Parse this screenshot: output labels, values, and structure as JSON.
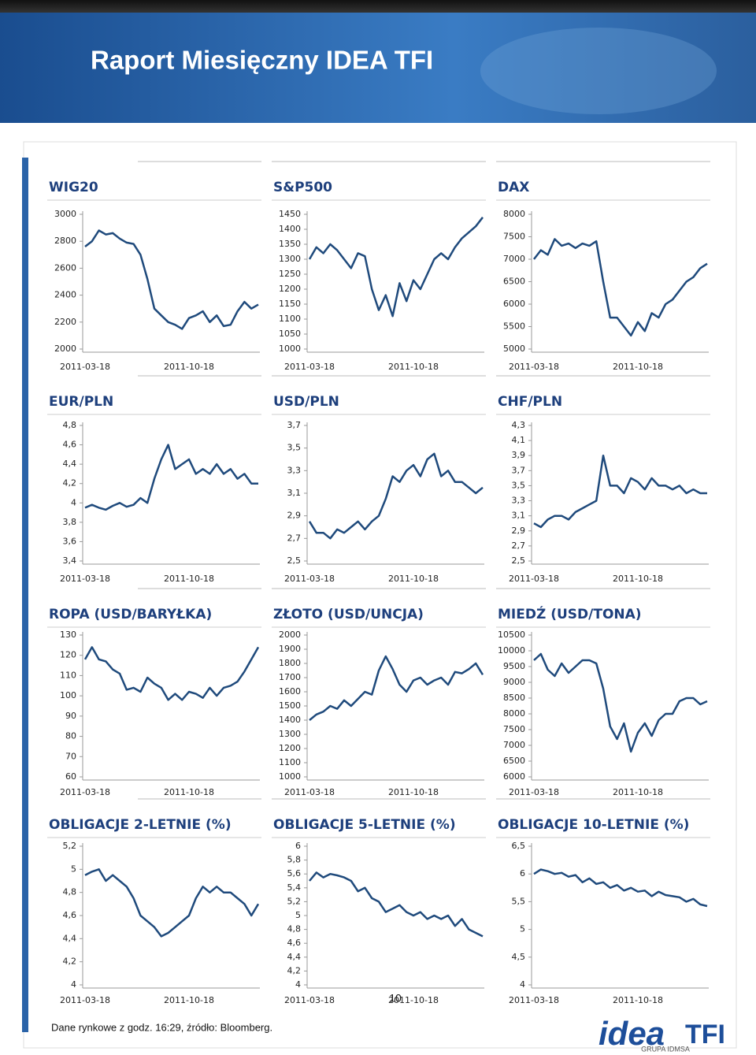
{
  "header": {
    "title": "Raport Miesięczny IDEA TFI"
  },
  "footer": {
    "note": "Dane rynkowe z godz. 16:29, źródło: Bloomberg.",
    "page": "10"
  },
  "logo": {
    "name": "idea",
    "suffix": "TFI",
    "group": "GRUPA IDMSA"
  },
  "chart_data": [
    {
      "type": "line",
      "title": "WIG20",
      "color": "#1f4a7c",
      "categories": [
        "2011-03-18",
        null,
        null,
        null,
        null,
        null,
        null,
        null,
        null,
        null,
        null,
        null,
        null,
        null,
        null,
        "2011-10-18",
        null,
        null,
        null,
        null,
        null,
        null,
        null,
        null,
        null,
        null
      ],
      "values": [
        2760,
        2800,
        2880,
        2850,
        2860,
        2820,
        2790,
        2780,
        2700,
        2520,
        2300,
        2250,
        2200,
        2180,
        2150,
        2230,
        2250,
        2280,
        2200,
        2250,
        2170,
        2180,
        2280,
        2350,
        2300,
        2330
      ],
      "ylim": [
        2000,
        3000
      ],
      "yticks": [
        2000,
        2200,
        2400,
        2600,
        2800,
        3000
      ]
    },
    {
      "type": "line",
      "title": "S&P500",
      "color": "#1f4a7c",
      "categories": [
        "2011-03-18",
        null,
        null,
        null,
        null,
        null,
        null,
        null,
        null,
        null,
        null,
        null,
        null,
        null,
        null,
        "2011-10-18",
        null,
        null,
        null,
        null,
        null,
        null,
        null,
        null,
        null,
        null
      ],
      "values": [
        1300,
        1340,
        1320,
        1350,
        1330,
        1300,
        1270,
        1320,
        1310,
        1200,
        1130,
        1180,
        1110,
        1220,
        1160,
        1230,
        1200,
        1250,
        1300,
        1320,
        1300,
        1340,
        1370,
        1390,
        1410,
        1440
      ],
      "ylim": [
        1000,
        1450
      ],
      "yticks": [
        1000,
        1050,
        1100,
        1150,
        1200,
        1250,
        1300,
        1350,
        1400,
        1450
      ]
    },
    {
      "type": "line",
      "title": "DAX",
      "color": "#1f4a7c",
      "categories": [
        "2011-03-18",
        null,
        null,
        null,
        null,
        null,
        null,
        null,
        null,
        null,
        null,
        null,
        null,
        null,
        null,
        "2011-10-18",
        null,
        null,
        null,
        null,
        null,
        null,
        null,
        null,
        null,
        null
      ],
      "values": [
        7000,
        7200,
        7100,
        7450,
        7300,
        7350,
        7250,
        7350,
        7300,
        7400,
        6500,
        5700,
        5700,
        5500,
        5300,
        5600,
        5400,
        5800,
        5700,
        6000,
        6100,
        6300,
        6500,
        6600,
        6800,
        6900
      ],
      "ylim": [
        5000,
        8000
      ],
      "yticks": [
        5000,
        5500,
        6000,
        6500,
        7000,
        7500,
        8000
      ]
    },
    {
      "type": "line",
      "title": "EUR/PLN",
      "color": "#1f4a7c",
      "categories": [
        "2011-03-18",
        null,
        null,
        null,
        null,
        null,
        null,
        null,
        null,
        null,
        null,
        null,
        null,
        null,
        null,
        "2011-10-18",
        null,
        null,
        null,
        null,
        null,
        null,
        null,
        null,
        null,
        null
      ],
      "values": [
        3.95,
        3.98,
        3.95,
        3.93,
        3.97,
        4.0,
        3.96,
        3.98,
        4.05,
        4.0,
        4.25,
        4.45,
        4.6,
        4.35,
        4.4,
        4.45,
        4.3,
        4.35,
        4.3,
        4.4,
        4.3,
        4.35,
        4.25,
        4.3,
        4.2,
        4.2
      ],
      "ylim": [
        3.4,
        4.8
      ],
      "yticks": [
        {
          "value": 3.4,
          "label": "3,4"
        },
        {
          "value": 3.6,
          "label": "3,6"
        },
        {
          "value": 3.8,
          "label": "3,8"
        },
        4,
        {
          "value": 4.2,
          "label": "4,2"
        },
        {
          "value": 4.4,
          "label": "4,4"
        },
        {
          "value": 4.6,
          "label": "4,6"
        },
        {
          "value": 4.8,
          "label": "4,8"
        }
      ]
    },
    {
      "type": "line",
      "title": "USD/PLN",
      "color": "#1f4a7c",
      "categories": [
        "2011-03-18",
        null,
        null,
        null,
        null,
        null,
        null,
        null,
        null,
        null,
        null,
        null,
        null,
        null,
        null,
        "2011-10-18",
        null,
        null,
        null,
        null,
        null,
        null,
        null,
        null,
        null,
        null
      ],
      "values": [
        2.85,
        2.75,
        2.75,
        2.7,
        2.78,
        2.75,
        2.8,
        2.85,
        2.78,
        2.85,
        2.9,
        3.05,
        3.25,
        3.2,
        3.3,
        3.35,
        3.25,
        3.4,
        3.45,
        3.25,
        3.3,
        3.2,
        3.2,
        3.15,
        3.1,
        3.15
      ],
      "ylim": [
        2.5,
        3.7
      ],
      "yticks": [
        {
          "value": 2.5,
          "label": "2,5"
        },
        {
          "value": 2.7,
          "label": "2,7"
        },
        {
          "value": 2.9,
          "label": "2,9"
        },
        {
          "value": 3.1,
          "label": "3,1"
        },
        {
          "value": 3.3,
          "label": "3,3"
        },
        {
          "value": 3.5,
          "label": "3,5"
        },
        {
          "value": 3.7,
          "label": "3,7"
        }
      ]
    },
    {
      "type": "line",
      "title": "CHF/PLN",
      "color": "#1f4a7c",
      "categories": [
        "2011-03-18",
        null,
        null,
        null,
        null,
        null,
        null,
        null,
        null,
        null,
        null,
        null,
        null,
        null,
        null,
        "2011-10-18",
        null,
        null,
        null,
        null,
        null,
        null,
        null,
        null,
        null,
        null
      ],
      "values": [
        3.0,
        2.95,
        3.05,
        3.1,
        3.1,
        3.05,
        3.15,
        3.2,
        3.25,
        3.3,
        3.9,
        3.5,
        3.5,
        3.4,
        3.6,
        3.55,
        3.45,
        3.6,
        3.5,
        3.5,
        3.45,
        3.5,
        3.4,
        3.45,
        3.4,
        3.4
      ],
      "ylim": [
        2.5,
        4.3
      ],
      "yticks": [
        {
          "value": 2.5,
          "label": "2,5"
        },
        {
          "value": 2.7,
          "label": "2,7"
        },
        {
          "value": 2.9,
          "label": "2,9"
        },
        {
          "value": 3.1,
          "label": "3,1"
        },
        {
          "value": 3.3,
          "label": "3,3"
        },
        {
          "value": 3.5,
          "label": "3,5"
        },
        {
          "value": 3.7,
          "label": "3,7"
        },
        {
          "value": 3.9,
          "label": "3,9"
        },
        {
          "value": 4.1,
          "label": "4,1"
        },
        {
          "value": 4.3,
          "label": "4,3"
        }
      ]
    },
    {
      "type": "line",
      "title": "ROPA (USD/BARYŁKA)",
      "color": "#1f4a7c",
      "categories": [
        "2011-03-18",
        null,
        null,
        null,
        null,
        null,
        null,
        null,
        null,
        null,
        null,
        null,
        null,
        null,
        null,
        "2011-10-18",
        null,
        null,
        null,
        null,
        null,
        null,
        null,
        null,
        null,
        null
      ],
      "values": [
        118,
        124,
        118,
        117,
        113,
        111,
        103,
        104,
        102,
        109,
        106,
        104,
        98,
        101,
        98,
        102,
        101,
        99,
        104,
        100,
        104,
        105,
        107,
        112,
        118,
        124
      ],
      "ylim": [
        60,
        130
      ],
      "yticks": [
        60,
        70,
        80,
        90,
        100,
        110,
        120,
        130
      ]
    },
    {
      "type": "line",
      "title": "ZŁOTO (USD/UNCJA)",
      "color": "#1f4a7c",
      "categories": [
        "2011-03-18",
        null,
        null,
        null,
        null,
        null,
        null,
        null,
        null,
        null,
        null,
        null,
        null,
        null,
        null,
        "2011-10-18",
        null,
        null,
        null,
        null,
        null,
        null,
        null,
        null,
        null,
        null
      ],
      "values": [
        1400,
        1440,
        1460,
        1500,
        1480,
        1540,
        1500,
        1550,
        1600,
        1580,
        1750,
        1850,
        1760,
        1650,
        1600,
        1680,
        1700,
        1650,
        1680,
        1700,
        1650,
        1740,
        1730,
        1760,
        1800,
        1720
      ],
      "ylim": [
        1000,
        2000
      ],
      "yticks": [
        1000,
        1100,
        1200,
        1300,
        1400,
        1500,
        1600,
        1700,
        1800,
        1900,
        2000
      ]
    },
    {
      "type": "line",
      "title": "MIEDŹ (USD/TONA)",
      "color": "#1f4a7c",
      "categories": [
        "2011-03-18",
        null,
        null,
        null,
        null,
        null,
        null,
        null,
        null,
        null,
        null,
        null,
        null,
        null,
        null,
        "2011-10-18",
        null,
        null,
        null,
        null,
        null,
        null,
        null,
        null,
        null,
        null
      ],
      "values": [
        9700,
        9900,
        9400,
        9200,
        9600,
        9300,
        9500,
        9700,
        9700,
        9600,
        8800,
        7600,
        7200,
        7700,
        6800,
        7400,
        7700,
        7300,
        7800,
        8000,
        8000,
        8400,
        8500,
        8500,
        8300,
        8400
      ],
      "ylim": [
        6000,
        10500
      ],
      "yticks": [
        6000,
        6500,
        7000,
        7500,
        8000,
        8500,
        9000,
        9500,
        10000,
        10500
      ]
    },
    {
      "type": "line",
      "title": "OBLIGACJE 2-LETNIE (%)",
      "color": "#1f4a7c",
      "categories": [
        "2011-03-18",
        null,
        null,
        null,
        null,
        null,
        null,
        null,
        null,
        null,
        null,
        null,
        null,
        null,
        null,
        "2011-10-18",
        null,
        null,
        null,
        null,
        null,
        null,
        null,
        null,
        null,
        null
      ],
      "values": [
        4.95,
        4.98,
        5.0,
        4.9,
        4.95,
        4.9,
        4.85,
        4.75,
        4.6,
        4.55,
        4.5,
        4.42,
        4.45,
        4.5,
        4.55,
        4.6,
        4.75,
        4.85,
        4.8,
        4.85,
        4.8,
        4.8,
        4.75,
        4.7,
        4.6,
        4.7
      ],
      "ylim": [
        4,
        5.2
      ],
      "yticks": [
        4,
        {
          "value": 4.2,
          "label": "4,2"
        },
        {
          "value": 4.4,
          "label": "4,4"
        },
        {
          "value": 4.6,
          "label": "4,6"
        },
        {
          "value": 4.8,
          "label": "4,8"
        },
        5,
        {
          "value": 5.2,
          "label": "5,2"
        }
      ]
    },
    {
      "type": "line",
      "title": "OBLIGACJE 5-LETNIE (%)",
      "color": "#1f4a7c",
      "categories": [
        "2011-03-18",
        null,
        null,
        null,
        null,
        null,
        null,
        null,
        null,
        null,
        null,
        null,
        null,
        null,
        null,
        "2011-10-18",
        null,
        null,
        null,
        null,
        null,
        null,
        null,
        null,
        null,
        null
      ],
      "values": [
        5.5,
        5.62,
        5.55,
        5.6,
        5.58,
        5.55,
        5.5,
        5.35,
        5.4,
        5.25,
        5.2,
        5.05,
        5.1,
        5.15,
        5.05,
        5.0,
        5.05,
        4.95,
        5.0,
        4.95,
        5.0,
        4.85,
        4.95,
        4.8,
        4.75,
        4.7
      ],
      "ylim": [
        4,
        6
      ],
      "yticks": [
        4,
        {
          "value": 4.2,
          "label": "4,2"
        },
        {
          "value": 4.4,
          "label": "4,4"
        },
        {
          "value": 4.6,
          "label": "4,6"
        },
        {
          "value": 4.8,
          "label": "4,8"
        },
        5,
        {
          "value": 5.2,
          "label": "5,2"
        },
        {
          "value": 5.4,
          "label": "5,4"
        },
        {
          "value": 5.6,
          "label": "5,6"
        },
        {
          "value": 5.8,
          "label": "5,8"
        },
        6
      ]
    },
    {
      "type": "line",
      "title": "OBLIGACJE 10-LETNIE (%)",
      "color": "#1f4a7c",
      "categories": [
        "2011-03-18",
        null,
        null,
        null,
        null,
        null,
        null,
        null,
        null,
        null,
        null,
        null,
        null,
        null,
        null,
        "2011-10-18",
        null,
        null,
        null,
        null,
        null,
        null,
        null,
        null,
        null,
        null
      ],
      "values": [
        6.0,
        6.08,
        6.05,
        6.0,
        6.02,
        5.95,
        5.98,
        5.85,
        5.92,
        5.82,
        5.85,
        5.75,
        5.8,
        5.7,
        5.75,
        5.68,
        5.7,
        5.6,
        5.68,
        5.62,
        5.6,
        5.58,
        5.5,
        5.55,
        5.45,
        5.42
      ],
      "ylim": [
        4,
        6.5
      ],
      "yticks": [
        4,
        {
          "value": 4.5,
          "label": "4,5"
        },
        5,
        {
          "value": 5.5,
          "label": "5,5"
        },
        6,
        {
          "value": 6.5,
          "label": "6,5"
        }
      ]
    }
  ]
}
